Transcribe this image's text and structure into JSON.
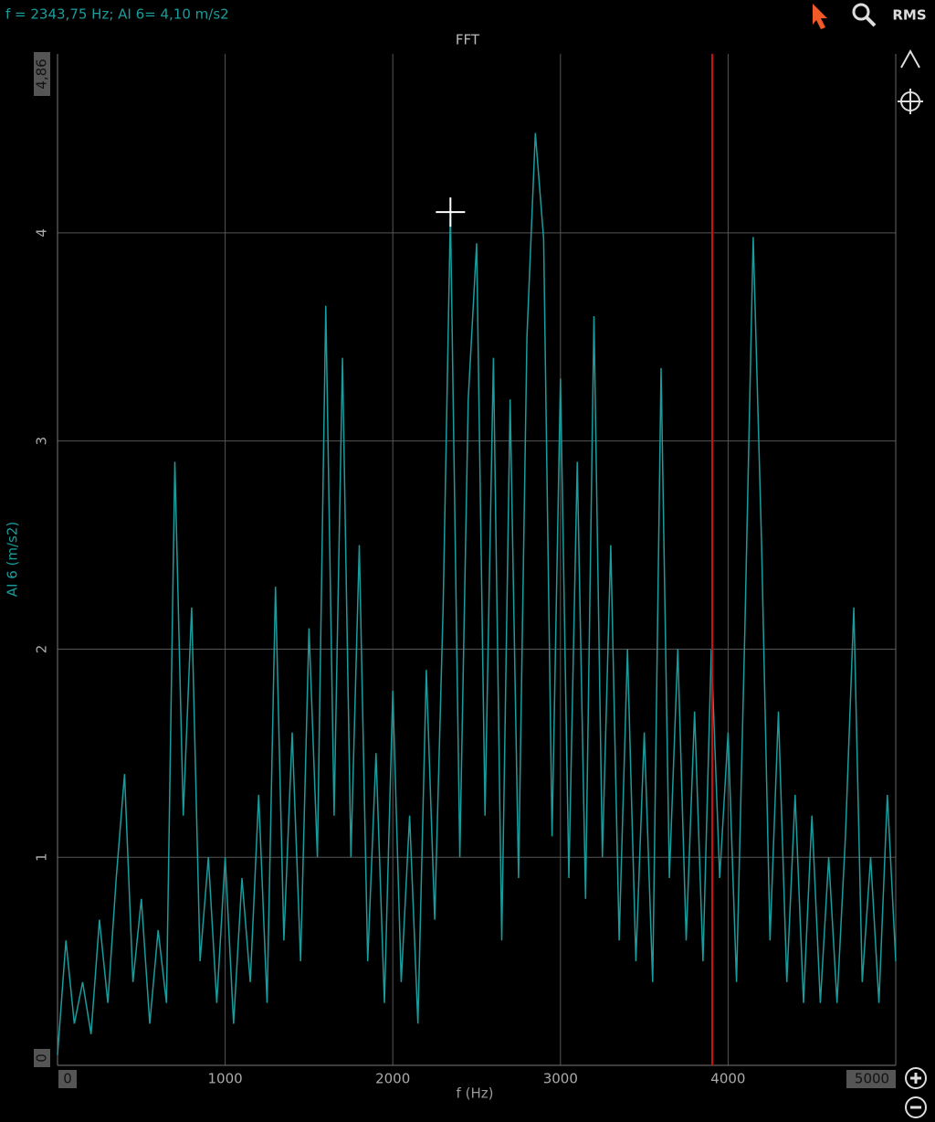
{
  "toolbar": {
    "readout": "f = 2343,75 Hz; AI 6= 4,10 m/s2",
    "rms": "RMS"
  },
  "chart_data": {
    "type": "line",
    "title": "FFT",
    "x_label": "f (Hz)",
    "y_label": "AI 6 (m/s2)",
    "xlim": [
      0,
      5000
    ],
    "ylim": [
      0,
      4.86
    ],
    "xticks": [
      0,
      1000,
      2000,
      3000,
      4000,
      5000
    ],
    "yticks": [
      0,
      1,
      2,
      3,
      4,
      {
        "value": 4.86,
        "label": "4,86"
      }
    ],
    "grid": true,
    "cursor": {
      "x": 3905,
      "color": "#d01010"
    },
    "marker": {
      "x": 2343.75,
      "y": 4.1
    },
    "x": [
      0,
      50,
      100,
      150,
      200,
      250,
      300,
      350,
      400,
      450,
      500,
      550,
      600,
      650,
      700,
      750,
      800,
      850,
      900,
      950,
      1000,
      1050,
      1100,
      1150,
      1200,
      1250,
      1300,
      1350,
      1400,
      1450,
      1500,
      1550,
      1600,
      1650,
      1700,
      1750,
      1800,
      1850,
      1900,
      1950,
      2000,
      2050,
      2100,
      2150,
      2200,
      2250,
      2300,
      2343.75,
      2400,
      2450,
      2500,
      2550,
      2600,
      2650,
      2700,
      2750,
      2800,
      2850,
      2900,
      2950,
      3000,
      3050,
      3100,
      3150,
      3200,
      3250,
      3300,
      3350,
      3400,
      3450,
      3500,
      3550,
      3600,
      3650,
      3700,
      3750,
      3800,
      3850,
      3900,
      3950,
      4000,
      4050,
      4100,
      4150,
      4200,
      4250,
      4300,
      4350,
      4400,
      4450,
      4500,
      4550,
      4600,
      4650,
      4700,
      4750,
      4800,
      4850,
      4900,
      4950,
      5000
    ],
    "series": [
      {
        "name": "AI 6",
        "color": "#1a9c9c",
        "values": [
          0.05,
          0.6,
          0.2,
          0.4,
          0.15,
          0.7,
          0.3,
          0.9,
          1.4,
          0.4,
          0.8,
          0.2,
          0.65,
          0.3,
          2.9,
          1.2,
          2.2,
          0.5,
          1.0,
          0.3,
          1.0,
          0.2,
          0.9,
          0.4,
          1.3,
          0.3,
          2.3,
          0.6,
          1.6,
          0.5,
          2.1,
          1.0,
          3.65,
          1.2,
          3.4,
          1.0,
          2.5,
          0.5,
          1.5,
          0.3,
          1.8,
          0.4,
          1.2,
          0.2,
          1.9,
          0.7,
          2.2,
          4.1,
          1.0,
          3.2,
          3.95,
          1.2,
          3.4,
          0.6,
          3.2,
          0.9,
          3.5,
          4.48,
          3.97,
          1.1,
          3.3,
          0.9,
          2.9,
          0.8,
          3.6,
          1.0,
          2.5,
          0.6,
          2.0,
          0.5,
          1.6,
          0.4,
          3.35,
          0.9,
          2.0,
          0.6,
          1.7,
          0.5,
          2.0,
          0.9,
          1.6,
          0.4,
          2.1,
          3.98,
          2.5,
          0.6,
          1.7,
          0.4,
          1.3,
          0.3,
          1.2,
          0.3,
          1.0,
          0.3,
          1.1,
          2.2,
          0.4,
          1.0,
          0.3,
          1.3,
          0.5
        ]
      }
    ]
  }
}
